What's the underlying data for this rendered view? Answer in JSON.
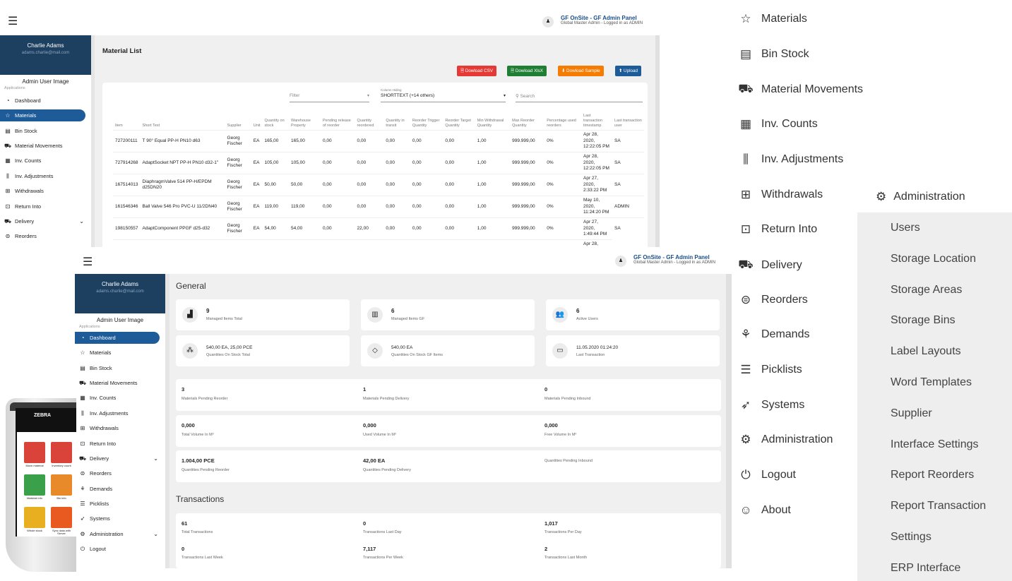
{
  "brand": {
    "title": "GF OnSite - GF Admin Panel",
    "subtitle": "Global Master Admin - Logged in as ADMIN"
  },
  "profile": {
    "name": "Charlie Adams",
    "email": "adams.charlie@mail.com",
    "image_alt": "Admin User Image",
    "section": "Applications"
  },
  "nav": [
    {
      "label": "Dashboard",
      "icon": "gauge-icon",
      "glyph": "◔"
    },
    {
      "label": "Materials",
      "icon": "star-icon",
      "glyph": "☆"
    },
    {
      "label": "Bin Stock",
      "icon": "shelves-icon",
      "glyph": "▤"
    },
    {
      "label": "Material Movements",
      "icon": "truck-icon",
      "glyph": "⛟"
    },
    {
      "label": "Inv. Counts",
      "icon": "calculator-icon",
      "glyph": "▦"
    },
    {
      "label": "Inv. Adjustments",
      "icon": "sliders-icon",
      "glyph": "⫼"
    },
    {
      "label": "Withdrawals",
      "icon": "hand-icon",
      "glyph": "⊞"
    },
    {
      "label": "Return Into",
      "icon": "return-icon",
      "glyph": "⊡"
    },
    {
      "label": "Delivery",
      "icon": "delivery-icon",
      "glyph": "⛟"
    },
    {
      "label": "Reorders",
      "icon": "reorder-icon",
      "glyph": "⊜"
    },
    {
      "label": "Demands",
      "icon": "demands-icon",
      "glyph": "⚘"
    },
    {
      "label": "Picklists",
      "icon": "clipboard-icon",
      "glyph": "☰"
    },
    {
      "label": "Systems",
      "icon": "rocket-icon",
      "glyph": "➶"
    },
    {
      "label": "Administration",
      "icon": "gear-icon",
      "glyph": "⚙"
    },
    {
      "label": "Logout",
      "icon": "power-icon",
      "glyph": "⏻"
    }
  ],
  "materials": {
    "title": "Material List",
    "buttons": {
      "csv": "Dowload CSV",
      "xlsx": "Dowload XlsX",
      "sample": "Dowload Sample",
      "upload": "Upload"
    },
    "filter_placeholder": "Filter",
    "column_hiding_label": "Column Hiding",
    "column_hiding_value": "SHORTTEXT (+14 others)",
    "search_placeholder": "Search",
    "columns": [
      "Item",
      "Short Text",
      "Supplier",
      "Unit",
      "Quantity on stock",
      "Warehouse Property",
      "Pending release of reorder",
      "Quantity reordered",
      "Quantity in transit",
      "Reorder Trigger Quantity",
      "Reorder Target Quantity",
      "Min Withdrawal Quantity",
      "Max Reorder Quantity",
      "Percentage used reorders",
      "Last transaction timestamp",
      "Last transaction user"
    ],
    "rows": [
      [
        "727200111",
        "T 90° Equal PP-H PN10 d63",
        "Georg Fischer",
        "EA",
        "165,00",
        "165,00",
        "0,00",
        "0,00",
        "0,00",
        "0,00",
        "0,00",
        "1,00",
        "999.999,00",
        "0%",
        "Apr 28, 2020, 12:22:05 PM",
        "SA"
      ],
      [
        "727914268",
        "AdaptSocket NPT PP-H PN10 d32-1\"",
        "Georg Fischer",
        "EA",
        "105,00",
        "105,00",
        "0,00",
        "0,00",
        "0,00",
        "0,00",
        "0,00",
        "1,00",
        "999.999,00",
        "0%",
        "Apr 28, 2020, 12:22:05 PM",
        "SA"
      ],
      [
        "167514013",
        "DiaphragmValve 514 PP-H/EPDM d25DN20",
        "Georg Fischer",
        "EA",
        "50,00",
        "50,00",
        "0,00",
        "0,00",
        "0,00",
        "0,00",
        "0,00",
        "1,00",
        "999.999,00",
        "0%",
        "Apr 27, 2020, 2:33:22 PM",
        "SA"
      ],
      [
        "161546346",
        "Ball Valve 546 Pro PVC-U 11/2DN40",
        "Georg Fischer",
        "EA",
        "119,00",
        "119,00",
        "0,00",
        "0,00",
        "0,00",
        "0,00",
        "0,00",
        "1,00",
        "999.999,00",
        "0%",
        "May 10, 2020, 11:24:20 PM",
        "ADMIN"
      ],
      [
        "198150557",
        "AdaptComponent PPGF d25-d32",
        "Georg Fischer",
        "EA",
        "54,00",
        "54,00",
        "0,00",
        "22,00",
        "0,00",
        "0,00",
        "0,00",
        "1,00",
        "999.999,00",
        "0%",
        "Apr 27, 2020, 1:49:44 PM",
        "SA"
      ]
    ],
    "partial_row": "Apr 28,"
  },
  "dashboard": {
    "general_title": "General",
    "transactions_title": "Transactions",
    "cards": [
      {
        "value": "9",
        "label": "Managed Items Total",
        "icon": "area-chart-icon",
        "glyph": "▟"
      },
      {
        "value": "6",
        "label": "Managed Items GF",
        "icon": "bar-chart-icon",
        "glyph": "▥"
      },
      {
        "value": "6",
        "label": "Active Users",
        "icon": "users-icon",
        "glyph": "👥"
      },
      {
        "value": "540,00 EA, 25,00 PCE",
        "label": "Quantities On Stock Total",
        "icon": "cubes-icon",
        "glyph": "⁂"
      },
      {
        "value": "540,00 EA",
        "label": "Quantities On Stock GF Items",
        "icon": "diamond-icon",
        "glyph": "◇"
      },
      {
        "value": "11.05.2020 01:24:20",
        "label": "Last Transaction",
        "icon": "card-icon",
        "glyph": "▭"
      }
    ],
    "row_stats": [
      [
        {
          "value": "3",
          "label": "Materials Pending Reorder"
        },
        {
          "value": "1",
          "label": "Materials Pending Delivery"
        },
        {
          "value": "0",
          "label": "Materials Pending Inbound"
        }
      ],
      [
        {
          "value": "0,000",
          "label": "Total Volume In M³"
        },
        {
          "value": "0,000",
          "label": "Used Volume In M³"
        },
        {
          "value": "0,000",
          "label": "Free Volume In M³"
        }
      ],
      [
        {
          "value": "1.004,00 PCE",
          "label": "Quantities Pending Reorder"
        },
        {
          "value": "42,00 EA",
          "label": "Quantities Pending Delivery"
        },
        {
          "value": "",
          "label": "Quantities Pending Inbound"
        }
      ]
    ],
    "transactions": [
      {
        "value": "61",
        "label": "Total Transactions"
      },
      {
        "value": "0",
        "label": "Transactions Last Day"
      },
      {
        "value": "1,017",
        "label": "Transactions Per Day"
      },
      {
        "value": "0",
        "label": "Transactions Last Week"
      },
      {
        "value": "7,117",
        "label": "Transactions Per Week"
      },
      {
        "value": "2",
        "label": "Transactions Last Month"
      }
    ]
  },
  "big_menu": [
    {
      "label": "Materials",
      "icon": "star-icon",
      "glyph": "☆"
    },
    {
      "label": "Bin Stock",
      "icon": "shelves-icon",
      "glyph": "▤"
    },
    {
      "label": "Material Movements",
      "icon": "truck-icon",
      "glyph": "⛟"
    },
    {
      "label": "Inv. Counts",
      "icon": "calculator-icon",
      "glyph": "▦"
    },
    {
      "label": "Inv. Adjustments",
      "icon": "sliders-icon",
      "glyph": "⫼"
    },
    {
      "label": "Withdrawals",
      "icon": "hand-icon",
      "glyph": "⊞"
    },
    {
      "label": "Return Into",
      "icon": "return-icon",
      "glyph": "⊡"
    },
    {
      "label": "Delivery",
      "icon": "delivery-icon",
      "glyph": "⛟"
    },
    {
      "label": "Reorders",
      "icon": "reorder-icon",
      "glyph": "⊜"
    },
    {
      "label": "Demands",
      "icon": "demands-icon",
      "glyph": "⚘"
    },
    {
      "label": "Picklists",
      "icon": "clipboard-icon",
      "glyph": "☰"
    },
    {
      "label": "Systems",
      "icon": "rocket-icon",
      "glyph": "➶"
    },
    {
      "label": "Administration",
      "icon": "gear-icon",
      "glyph": "⚙"
    },
    {
      "label": "Logout",
      "icon": "power-icon",
      "glyph": "⏻"
    },
    {
      "label": "About",
      "icon": "smiley-icon",
      "glyph": "☺"
    }
  ],
  "admin_menu": {
    "title": "Administration",
    "icon": "gear-icon",
    "items": [
      "Users",
      "Storage Location",
      "Storage Areas",
      "Storage Bins",
      "Label Layouts",
      "Word Templates",
      "Supplier",
      "Interface Settings",
      "Report Reorders",
      "Report Transaction",
      "Settings",
      "ERP Interface"
    ]
  },
  "phone": {
    "brand": "ZEBRA",
    "tiles": [
      {
        "label": "Move material",
        "color": "#d9433a"
      },
      {
        "label": "Inventory count",
        "color": "#d9433a"
      },
      {
        "label": "Material info",
        "color": "#3aa04a"
      },
      {
        "label": "Bin info",
        "color": "#e88a2a"
      },
      {
        "label": "Whole stock",
        "color": "#e8b020"
      },
      {
        "label": "Sync data with Server",
        "color": "#e85a20"
      }
    ]
  }
}
